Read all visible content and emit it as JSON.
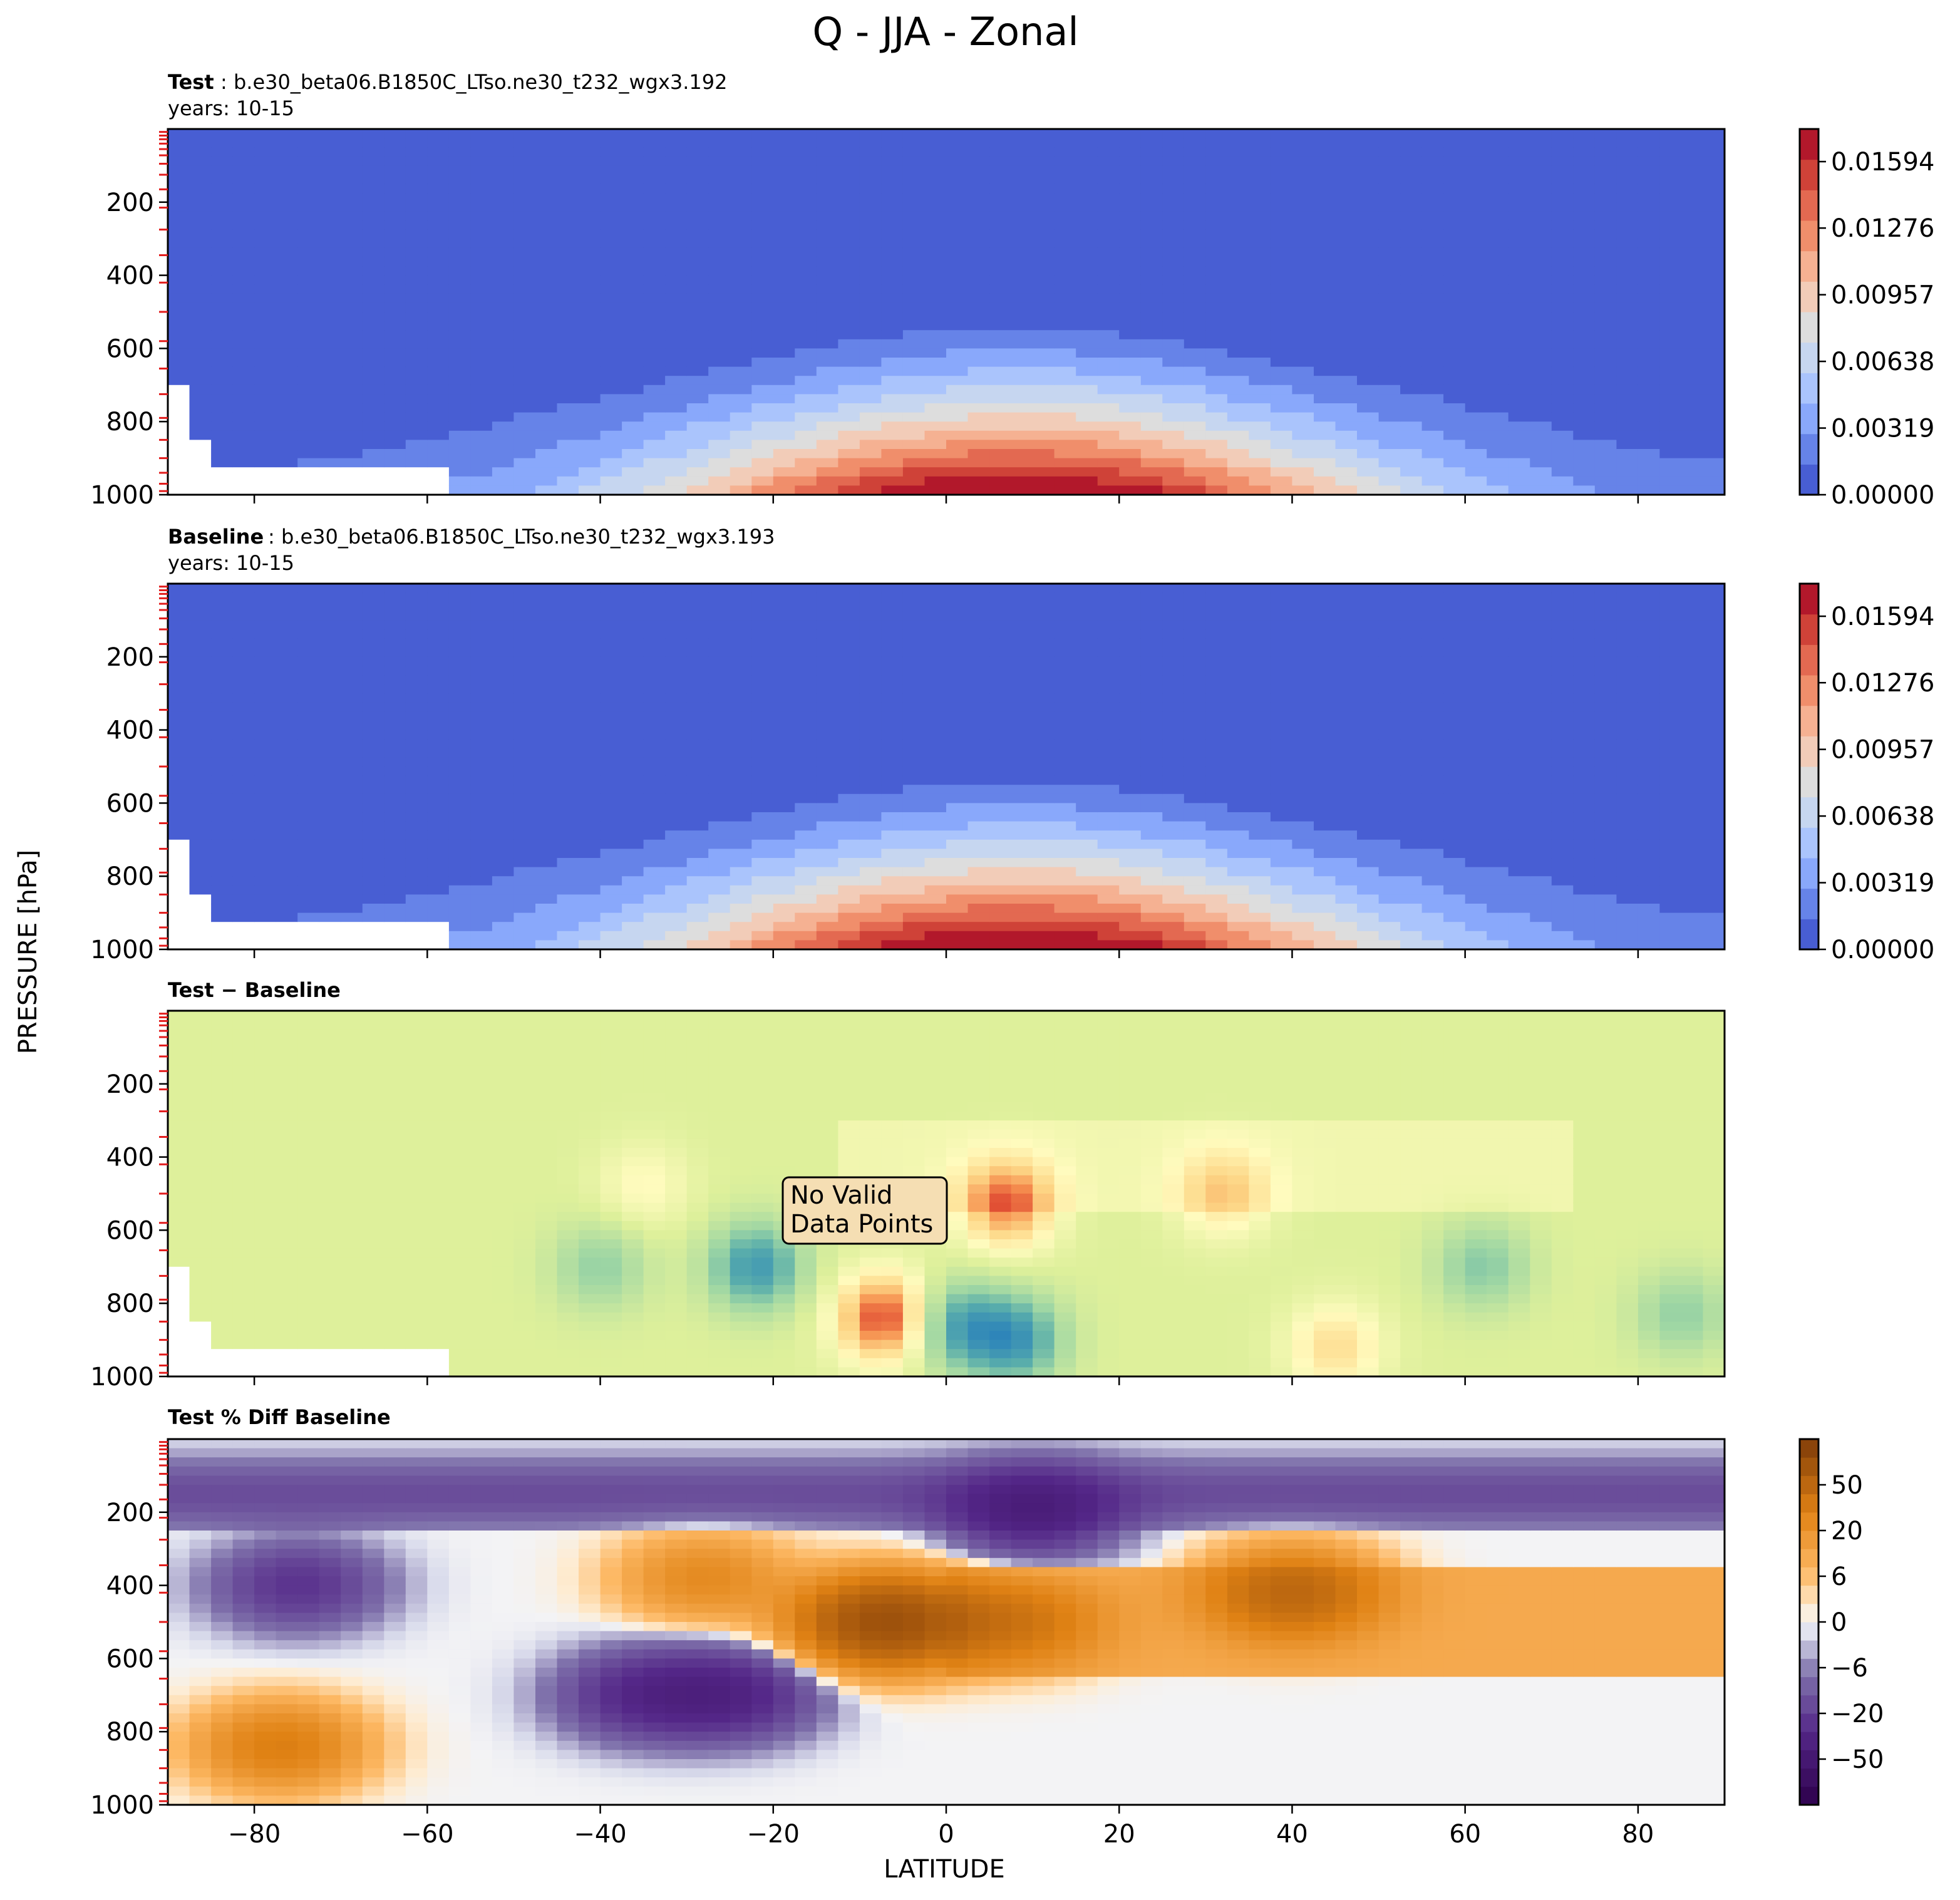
{
  "figure": {
    "title": "Q - JJA - Zonal",
    "ylabel": "PRESSURE [hPa]",
    "xlabel": "LATITUDE"
  },
  "chart_data": [
    {
      "type": "heatmap",
      "panel": "test",
      "label_bold": "Test",
      "label_rest": ": b.e30_beta06.B1850C_LTso.ne30_t232_wgx3.192",
      "years": "years: 10-15",
      "x_range": [
        -90,
        90
      ],
      "y_range": [
        1000,
        0
      ],
      "y_ticks": [
        "200",
        "400",
        "600",
        "800",
        "1000"
      ],
      "colorbar_ticks": [
        "0.00000",
        "0.00319",
        "0.00638",
        "0.00957",
        "0.01276",
        "0.01594"
      ],
      "colorbar_range": [
        0,
        0.0175
      ],
      "colormap": "coolwarm",
      "field": {
        "peak_lat": 8,
        "peak_value": 0.0172,
        "surface_width_deg": 40,
        "moist_top_hPa_tropics": 430,
        "moist_top_hPa_north": 650
      }
    },
    {
      "type": "heatmap",
      "panel": "baseline",
      "label_bold": "Baseline",
      "label_rest": ": b.e30_beta06.B1850C_LTso.ne30_t232_wgx3.193",
      "years": "years: 10-15",
      "x_range": [
        -90,
        90
      ],
      "y_range": [
        1000,
        0
      ],
      "y_ticks": [
        "200",
        "400",
        "600",
        "800",
        "1000"
      ],
      "colorbar_ticks": [
        "0.00000",
        "0.00319",
        "0.00638",
        "0.00957",
        "0.01276",
        "0.01594"
      ],
      "colorbar_range": [
        0,
        0.0175
      ],
      "colormap": "coolwarm",
      "field": {
        "peak_lat": 8,
        "peak_value": 0.0172,
        "surface_width_deg": 40,
        "moist_top_hPa_tropics": 430,
        "moist_top_hPa_north": 650
      }
    },
    {
      "type": "heatmap",
      "panel": "difference",
      "label_bold": "Test − Baseline",
      "x_range": [
        -90,
        90
      ],
      "y_range": [
        1000,
        0
      ],
      "y_ticks": [
        "200",
        "400",
        "600",
        "800",
        "1000"
      ],
      "colormap": "diverging green-yellow-red",
      "annotation": [
        "No Valid",
        "Data Points"
      ],
      "blobs": [
        {
          "lat": -7,
          "p": 840,
          "sign": 1,
          "strength": 1.0
        },
        {
          "lat": 7,
          "p": 530,
          "sign": 1,
          "strength": 0.8
        },
        {
          "lat": -22,
          "p": 700,
          "sign": -1,
          "strength": 0.8
        },
        {
          "lat": 1,
          "p": 860,
          "sign": -1,
          "strength": 0.7
        },
        {
          "lat": 8,
          "p": 900,
          "sign": -1,
          "strength": 0.8
        },
        {
          "lat": 32,
          "p": 500,
          "sign": 1,
          "strength": 0.45
        },
        {
          "lat": 45,
          "p": 920,
          "sign": 1,
          "strength": 0.45
        },
        {
          "lat": 62,
          "p": 700,
          "sign": -1,
          "strength": 0.45
        },
        {
          "lat": 85,
          "p": 830,
          "sign": -1,
          "strength": 0.4
        },
        {
          "lat": -40,
          "p": 700,
          "sign": -1,
          "strength": 0.4
        },
        {
          "lat": -35,
          "p": 480,
          "sign": 1,
          "strength": 0.25
        }
      ]
    },
    {
      "type": "heatmap",
      "panel": "percent-difference",
      "label_bold": "Test % Diff Baseline",
      "x_range": [
        -90,
        90
      ],
      "y_range": [
        1000,
        0
      ],
      "y_ticks": [
        "200",
        "400",
        "600",
        "800",
        "1000"
      ],
      "x_ticks": [
        "−80",
        "−60",
        "−40",
        "−20",
        "0",
        "20",
        "40",
        "60",
        "80"
      ],
      "colorbar_ticks": [
        "−50",
        "−20",
        "−6",
        "0",
        "6",
        "20",
        "50"
      ],
      "colormap": "PuOr_r",
      "blobs": [
        {
          "lat": -7,
          "p": 500,
          "value": 45
        },
        {
          "lat": 40,
          "p": 420,
          "value": 22
        },
        {
          "lat": 8,
          "p": 500,
          "value": 14
        },
        {
          "lat": -28,
          "p": 380,
          "value": 10
        },
        {
          "lat": -77,
          "p": 840,
          "value": 14
        },
        {
          "lat": 10,
          "p": 200,
          "value": -16
        },
        {
          "lat": -25,
          "p": 700,
          "value": -14
        },
        {
          "lat": -35,
          "p": 700,
          "value": -12
        },
        {
          "lat": -75,
          "p": 400,
          "value": -10
        }
      ]
    }
  ]
}
